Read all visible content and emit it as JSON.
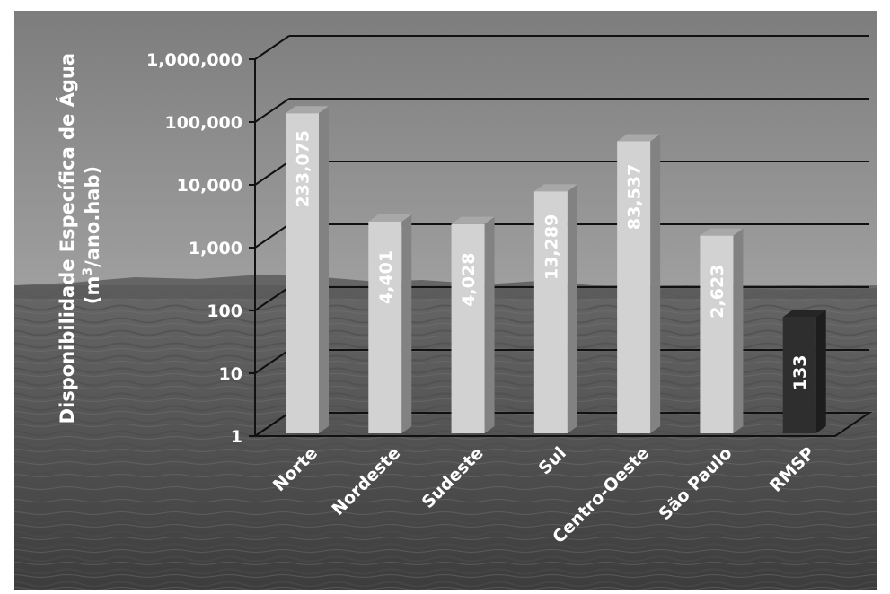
{
  "chart_data": {
    "type": "bar",
    "title": "",
    "xlabel": "",
    "ylabel_line1": "Disponibilidade Específica de Água",
    "ylabel_line2_prefix": "(m",
    "ylabel_line2_sup": "3",
    "ylabel_line2_suffix": "/ano.hab)",
    "yscale": "log",
    "ylim": [
      1,
      1000000
    ],
    "yticks": [
      {
        "value": 1,
        "label": "1"
      },
      {
        "value": 10,
        "label": "10"
      },
      {
        "value": 100,
        "label": "100"
      },
      {
        "value": 1000,
        "label": "1,000"
      },
      {
        "value": 10000,
        "label": "10,000"
      },
      {
        "value": 100000,
        "label": "100,000"
      },
      {
        "value": 1000000,
        "label": "1,000,000"
      }
    ],
    "grid": true,
    "legend": "none",
    "categories": [
      "Norte",
      "Nordeste",
      "Sudeste",
      "Sul",
      "Centro-Oeste",
      "São Paulo",
      "RMSP"
    ],
    "values": [
      233075,
      4401,
      4028,
      13289,
      83537,
      2623,
      133
    ],
    "value_labels": [
      "233,075",
      "4,401",
      "4,028",
      "13,289",
      "83,537",
      "2,623",
      "133"
    ],
    "bar_colors": [
      "#d2d2d2",
      "#d2d2d2",
      "#d2d2d2",
      "#d2d2d2",
      "#d2d2d2",
      "#d2d2d2",
      "#2e2e2e"
    ],
    "background": "grayscale photo of a lake"
  }
}
